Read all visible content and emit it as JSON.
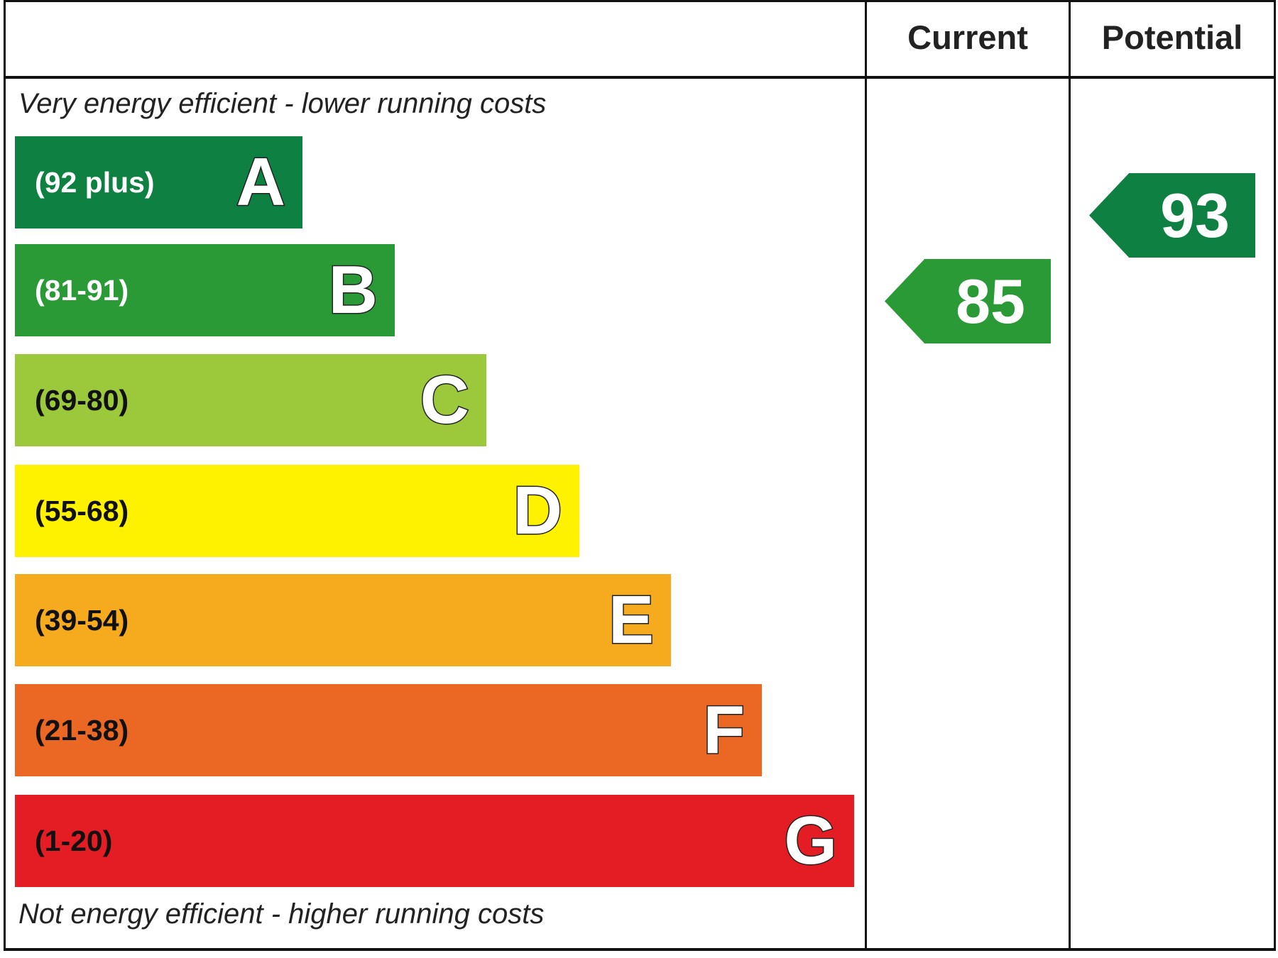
{
  "header": {
    "current_label": "Current",
    "potential_label": "Potential"
  },
  "notes": {
    "top": "Very energy efficient - lower running costs",
    "bottom": "Not energy efficient - higher running costs"
  },
  "chart_data": {
    "type": "bar",
    "title": "",
    "categories": [
      "A",
      "B",
      "C",
      "D",
      "E",
      "F",
      "G"
    ],
    "bands": [
      {
        "letter": "A",
        "range": "(92 plus)",
        "color": "#0e8042",
        "text_color": "#ffffff"
      },
      {
        "letter": "B",
        "range": "(81-91)",
        "color": "#2a9a36",
        "text_color": "#ffffff"
      },
      {
        "letter": "C",
        "range": "(69-80)",
        "color": "#9cc83c",
        "text_color": "#111111"
      },
      {
        "letter": "D",
        "range": "(55-68)",
        "color": "#fff200",
        "text_color": "#111111"
      },
      {
        "letter": "E",
        "range": "(39-54)",
        "color": "#f6ab1f",
        "text_color": "#111111"
      },
      {
        "letter": "F",
        "range": "(21-38)",
        "color": "#eb6724",
        "text_color": "#111111"
      },
      {
        "letter": "G",
        "range": "(1-20)",
        "color": "#e31d23",
        "text_color": "#111111"
      }
    ],
    "current": {
      "value": "85",
      "band": "B",
      "color": "#2a9a36"
    },
    "potential": {
      "value": "93",
      "band": "A",
      "color": "#0e8042"
    }
  }
}
